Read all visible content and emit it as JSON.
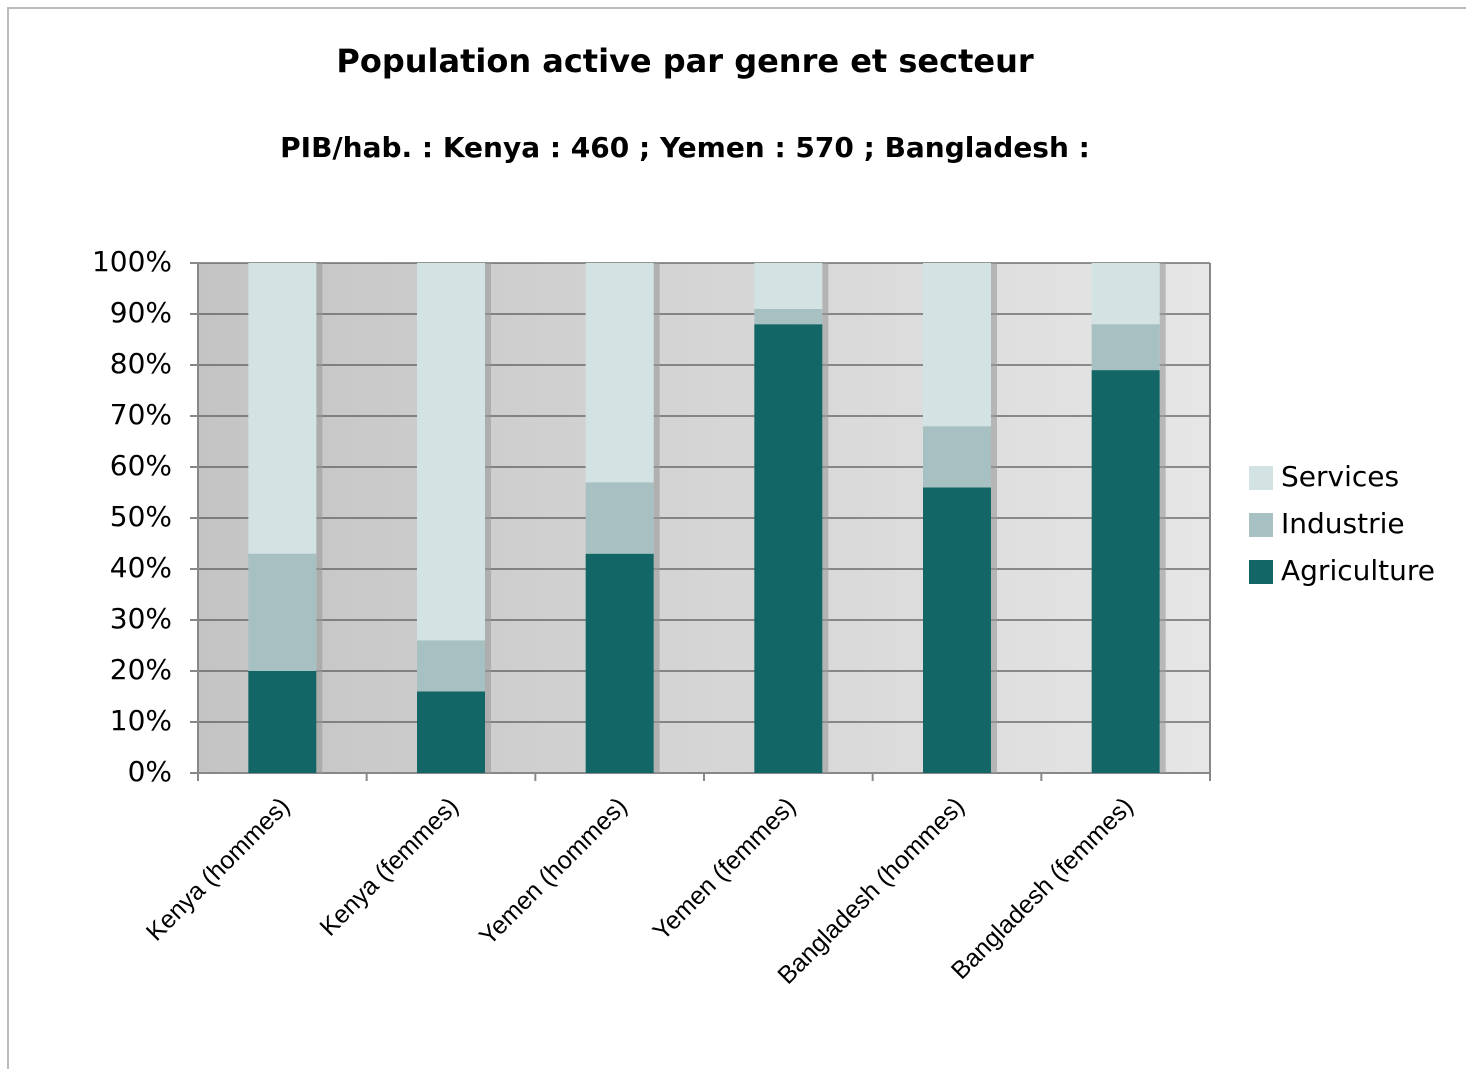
{
  "chart_data": {
    "type": "stacked_bar",
    "title": "Population active par genre et secteur",
    "subtitle": "PIB/hab. : Kenya : 460 ; Yemen : 570 ; Bangladesh :",
    "categories": [
      "Kenya (hommes)",
      "Kenya (femmes)",
      "Yemen (hommes)",
      "Yemen (femmes)",
      "Bangladesh (hommes)",
      "Bangladesh (femmes)"
    ],
    "series": [
      {
        "name": "Agriculture",
        "color": "#126665",
        "values": [
          20,
          16,
          43,
          88,
          56,
          79
        ]
      },
      {
        "name": "Industrie",
        "color": "#a7c1c2",
        "values": [
          23,
          10,
          14,
          3,
          12,
          9
        ]
      },
      {
        "name": "Services",
        "color": "#d3e2e3",
        "values": [
          57,
          74,
          43,
          9,
          32,
          12
        ]
      }
    ],
    "ylim": [
      0,
      100
    ],
    "yticks": [
      {
        "value": 0,
        "label": "0%"
      },
      {
        "value": 10,
        "label": "10%"
      },
      {
        "value": 20,
        "label": "20%"
      },
      {
        "value": 30,
        "label": "30%"
      },
      {
        "value": 40,
        "label": "40%"
      },
      {
        "value": 50,
        "label": "50%"
      },
      {
        "value": 60,
        "label": "60%"
      },
      {
        "value": 70,
        "label": "70%"
      },
      {
        "value": 80,
        "label": "80%"
      },
      {
        "value": 90,
        "label": "90%"
      },
      {
        "value": 100,
        "label": "100%"
      }
    ],
    "grid": true,
    "legend": "right"
  }
}
